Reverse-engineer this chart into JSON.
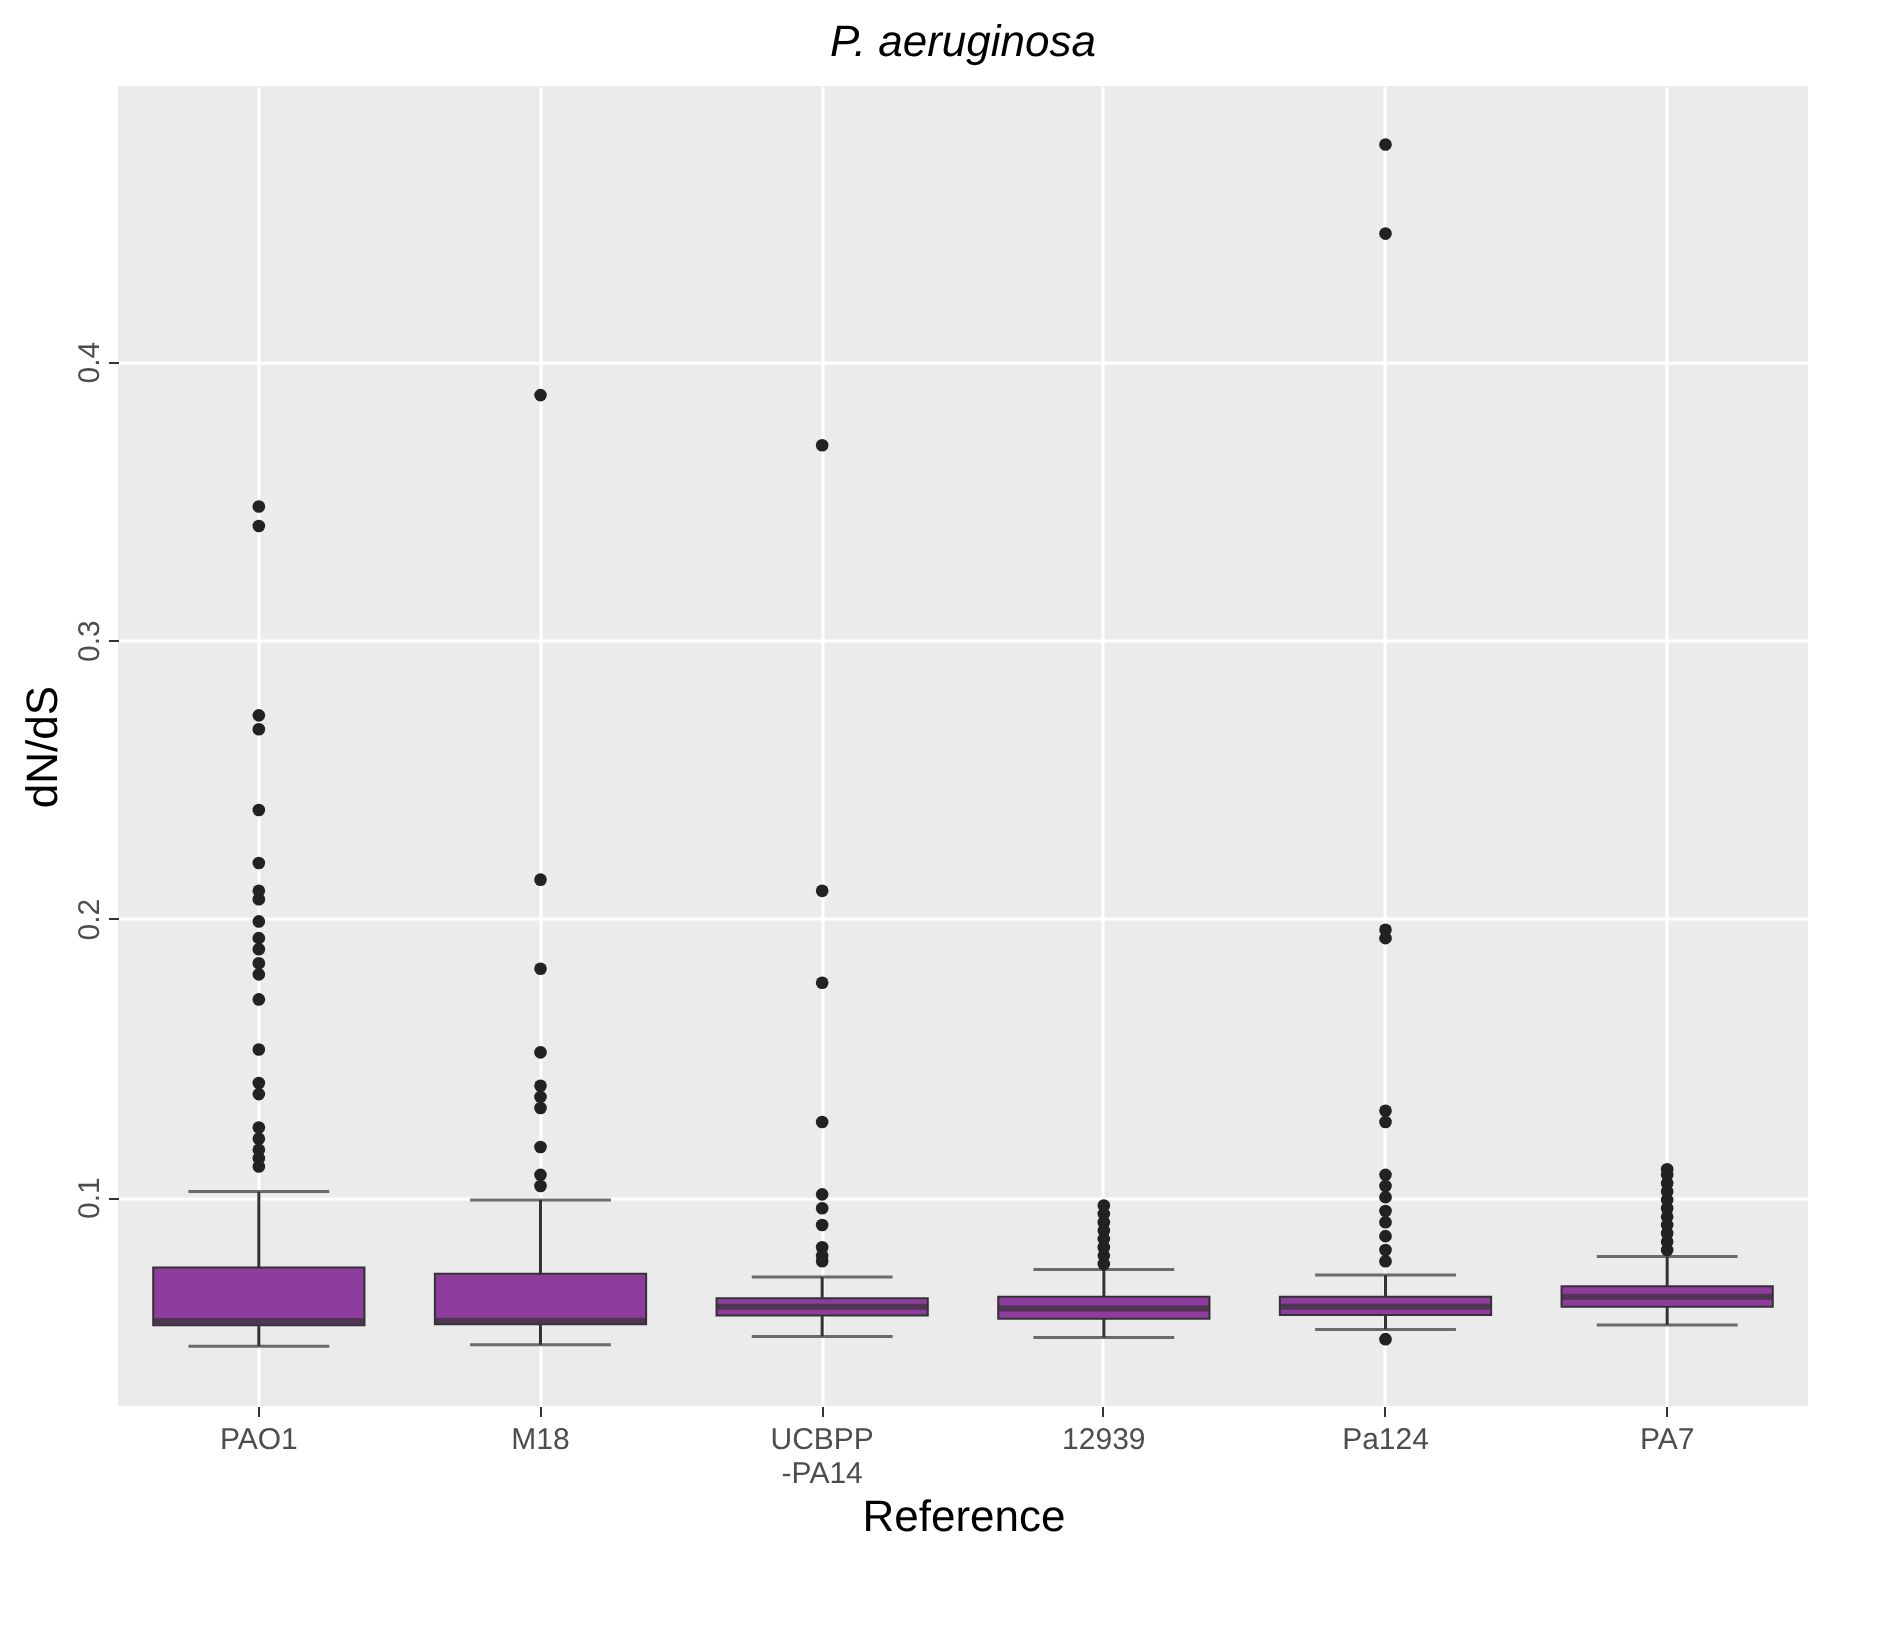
{
  "chart_data": {
    "type": "box",
    "title": "P. aeruginosa",
    "xlabel": "Reference",
    "ylabel": "dN/dS",
    "categories": [
      "PAO1",
      "M18",
      "UCBPP\n-PA14",
      "12939",
      "Pa124",
      "PA7"
    ],
    "series": [
      {
        "color": "#8e3c9e",
        "boxes": [
          {
            "low": 0.0465,
            "q1": 0.054,
            "median": 0.0555,
            "q3": 0.0747,
            "high": 0.102,
            "outliers": [
              0.348,
              0.341,
              0.273,
              0.268,
              0.239,
              0.22,
              0.21,
              0.207,
              0.199,
              0.193,
              0.189,
              0.184,
              0.18,
              0.171,
              0.153,
              0.141,
              0.137,
              0.125,
              0.121,
              0.117,
              0.114,
              0.111
            ]
          },
          {
            "low": 0.047,
            "q1": 0.0544,
            "median": 0.0556,
            "q3": 0.0725,
            "high": 0.099,
            "outliers": [
              0.388,
              0.214,
              0.182,
              0.152,
              0.14,
              0.136,
              0.132,
              0.118,
              0.108,
              0.104
            ]
          },
          {
            "low": 0.05,
            "q1": 0.0575,
            "median": 0.0606,
            "q3": 0.0637,
            "high": 0.0713,
            "outliers": [
              0.37,
              0.21,
              0.177,
              0.127,
              0.101,
              0.096,
              0.09,
              0.082,
              0.079,
              0.077
            ]
          },
          {
            "low": 0.0496,
            "q1": 0.0563,
            "median": 0.06,
            "q3": 0.0642,
            "high": 0.074,
            "outliers": [
              0.076,
              0.079,
              0.082,
              0.085,
              0.088,
              0.091,
              0.094,
              0.097
            ]
          },
          {
            "low": 0.0525,
            "q1": 0.0577,
            "median": 0.0606,
            "q3": 0.0642,
            "high": 0.072,
            "outliers": [
              0.478,
              0.446,
              0.196,
              0.193,
              0.131,
              0.127,
              0.108,
              0.104,
              0.1,
              0.095,
              0.091,
              0.086,
              0.081,
              0.077,
              0.049
            ]
          },
          {
            "low": 0.0541,
            "q1": 0.0606,
            "median": 0.0642,
            "q3": 0.068,
            "high": 0.0787,
            "outliers": [
              0.081,
              0.084,
              0.087,
              0.09,
              0.093,
              0.096,
              0.099,
              0.102,
              0.105,
              0.108,
              0.11
            ]
          }
        ]
      }
    ],
    "ylim": [
      0.025,
      0.499
    ],
    "yticks": [
      0.1,
      0.2,
      0.3,
      0.4
    ],
    "grid": true
  }
}
